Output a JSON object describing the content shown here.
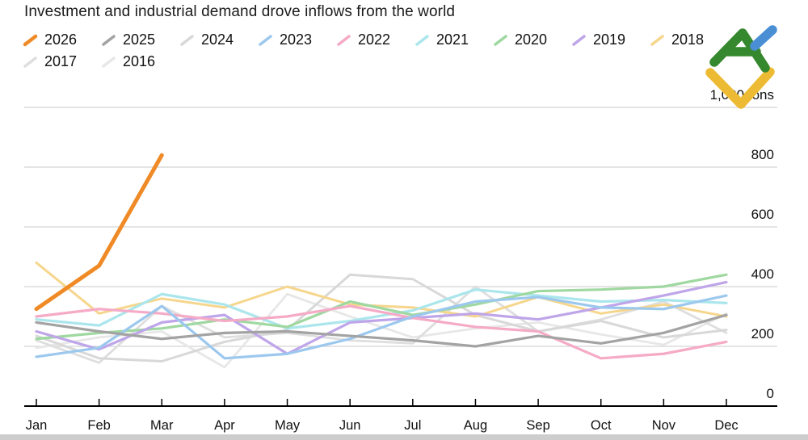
{
  "header": {
    "title": "Investment and industrial demand drove inflows from the world"
  },
  "logo": {
    "name": "litefinance-logo",
    "colors": {
      "green": "#36882e",
      "blue": "#4a8fd4",
      "yellow": "#edbb33"
    }
  },
  "chart_data": {
    "type": "line",
    "title": "Investment and industrial demand drove inflows from the world",
    "unit_label": "1,000 tons",
    "legend_position": "top",
    "grid": true,
    "xlabel": "",
    "ylabel": "1,000 tons",
    "ylim": [
      0,
      1080
    ],
    "x": [
      "Jan",
      "Feb",
      "Mar",
      "Apr",
      "May",
      "Jun",
      "Jul",
      "Aug",
      "Sep",
      "Oct",
      "Nov",
      "Dec"
    ],
    "y_ticks": [
      {
        "value": 0,
        "label": "0"
      },
      {
        "value": 200,
        "label": "200"
      },
      {
        "value": 400,
        "label": "400"
      },
      {
        "value": 600,
        "label": "600"
      },
      {
        "value": 800,
        "label": "800"
      },
      {
        "value": 1000,
        "label": "1,000 tons"
      }
    ],
    "series": [
      {
        "name": "2026",
        "color": "#ef8a26",
        "width": 5,
        "values": [
          325,
          470,
          840
        ]
      },
      {
        "name": "2025",
        "color": "#a3a3a3",
        "width": 3.2,
        "values": [
          280,
          250,
          225,
          245,
          250,
          235,
          220,
          200,
          235,
          210,
          245,
          305
        ]
      },
      {
        "name": "2024",
        "color": "#d8d8d8",
        "width": 3,
        "values": [
          235,
          160,
          150,
          215,
          255,
          440,
          425,
          305,
          250,
          285,
          230,
          255
        ]
      },
      {
        "name": "2023",
        "color": "#9cc8ee",
        "width": 3.2,
        "values": [
          165,
          195,
          335,
          160,
          175,
          225,
          300,
          350,
          365,
          330,
          325,
          370
        ]
      },
      {
        "name": "2022",
        "color": "#f5aac6",
        "width": 3.2,
        "values": [
          300,
          325,
          310,
          285,
          300,
          335,
          295,
          265,
          250,
          160,
          175,
          215
        ]
      },
      {
        "name": "2021",
        "color": "#abe6ec",
        "width": 3.2,
        "values": [
          290,
          270,
          375,
          340,
          260,
          285,
          320,
          390,
          370,
          350,
          355,
          345
        ]
      },
      {
        "name": "2020",
        "color": "#9fd8a0",
        "width": 3.2,
        "values": [
          225,
          245,
          260,
          290,
          265,
          350,
          305,
          340,
          385,
          390,
          400,
          440
        ]
      },
      {
        "name": "2019",
        "color": "#bfa5e9",
        "width": 3.2,
        "values": [
          250,
          190,
          280,
          305,
          175,
          280,
          295,
          310,
          290,
          330,
          370,
          415
        ]
      },
      {
        "name": "2018",
        "color": "#f6d68c",
        "width": 3,
        "values": [
          480,
          310,
          360,
          330,
          400,
          340,
          330,
          300,
          365,
          310,
          340,
          300
        ]
      },
      {
        "name": "2017",
        "color": "#dedede",
        "width": 2.8,
        "values": [
          220,
          145,
          335,
          230,
          245,
          220,
          210,
          400,
          250,
          290,
          350,
          245
        ]
      },
      {
        "name": "2016",
        "color": "#e7e7e7",
        "width": 2.8,
        "values": [
          195,
          230,
          250,
          130,
          375,
          300,
          230,
          260,
          280,
          240,
          205,
          310
        ]
      }
    ],
    "draw_order": [
      "2016",
      "2017",
      "2024",
      "2018",
      "2021",
      "2020",
      "2019",
      "2022",
      "2023",
      "2025",
      "2026"
    ]
  }
}
